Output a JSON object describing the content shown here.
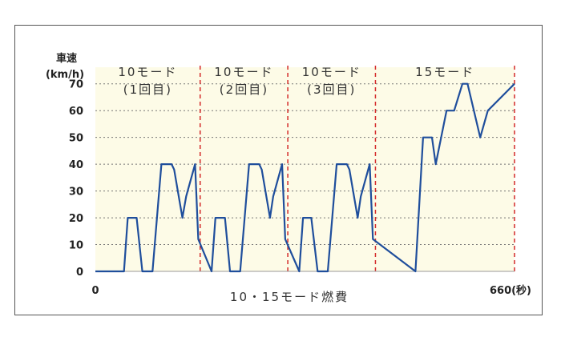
{
  "chart_data": {
    "type": "line",
    "title": "10・15モード燃費",
    "ylabel_line1": "車速",
    "ylabel_line2": "(km/h)",
    "ylim": [
      0,
      75
    ],
    "yticks": [
      0,
      10,
      20,
      30,
      40,
      50,
      60,
      70
    ],
    "xlim": [
      0,
      660
    ],
    "x_start_label": "0",
    "x_end_label": "660(秒)",
    "grid": true,
    "colors": {
      "line": "#1f4e9c",
      "divider": "#d42a2a",
      "plot_bg": "#fdfbe7",
      "grid": "#777777"
    },
    "segments": [
      {
        "name": "10モード",
        "sub": "(1回目)",
        "x_start": 0,
        "x_end": 165
      },
      {
        "name": "10モード",
        "sub": "(2回目)",
        "x_start": 165,
        "x_end": 303
      },
      {
        "name": "10モード",
        "sub": "(3回目)",
        "x_start": 303,
        "x_end": 441
      },
      {
        "name": "15モード",
        "sub": "",
        "x_start": 441,
        "x_end": 660
      }
    ],
    "dividers": [
      165,
      303,
      441,
      660
    ],
    "series": [
      {
        "name": "車速",
        "x": [
          0,
          45,
          51,
          65,
          74,
          90,
          104,
          120,
          124,
          137,
          143,
          157,
          162,
          183,
          189,
          204,
          212,
          228,
          242,
          258,
          262,
          275,
          280,
          294,
          299,
          321,
          327,
          340,
          350,
          366,
          380,
          396,
          400,
          413,
          418,
          432,
          437,
          504,
          516,
          530,
          536,
          553,
          565,
          578,
          586,
          606,
          618,
          660
        ],
        "y": [
          0,
          0,
          20,
          20,
          0,
          0,
          40,
          40,
          38,
          20,
          28,
          40,
          12,
          0,
          20,
          20,
          0,
          0,
          40,
          40,
          38,
          20,
          28,
          40,
          12,
          0,
          20,
          20,
          0,
          0,
          40,
          40,
          38,
          20,
          28,
          40,
          12,
          0,
          50,
          50,
          40,
          60,
          60,
          70,
          70,
          50,
          60,
          70
        ]
      }
    ]
  }
}
